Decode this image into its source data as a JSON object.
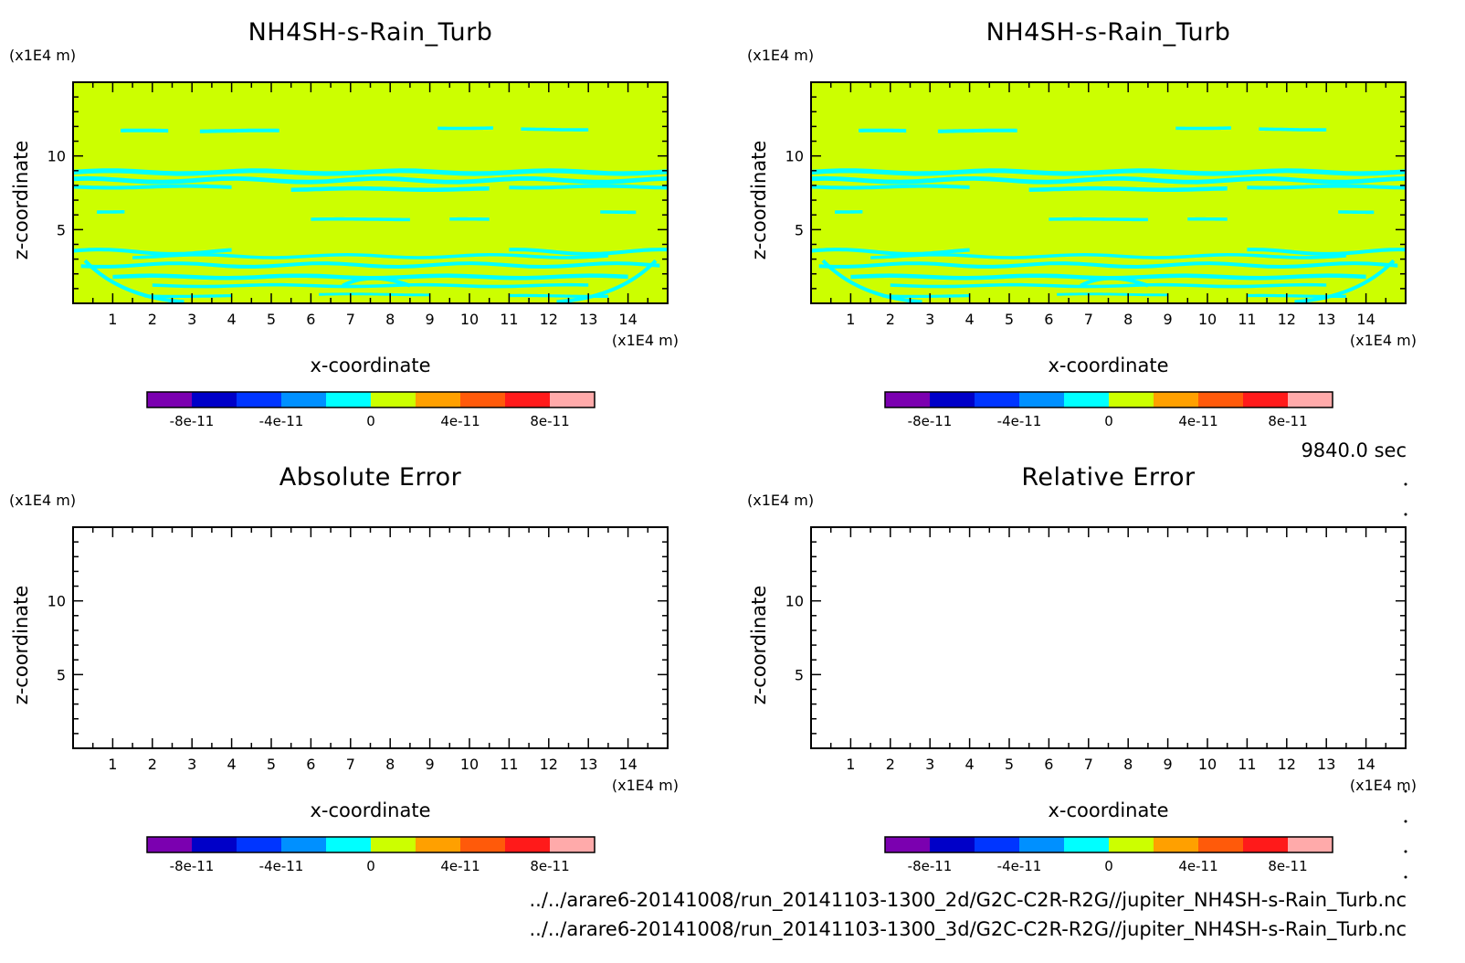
{
  "chart_data": [
    {
      "type": "heatmap",
      "title": "NH4SH-s-Rain_Turb",
      "xlabel": "x-coordinate",
      "ylabel": "z-coordinate",
      "x_unit": "(x1E4 m)",
      "y_unit": "(x1E4 m)",
      "xlim": [
        0,
        15
      ],
      "ylim": [
        0,
        15
      ],
      "x_ticks": [
        1,
        2,
        3,
        4,
        5,
        6,
        7,
        8,
        9,
        10,
        11,
        12,
        13,
        14
      ],
      "y_ticks": [
        5,
        10
      ],
      "fill": "near-zero field (0 to 2e-11) with thin bands in the -2e-11 to 0 level",
      "colorbar": {
        "levels": [
          -1e-10,
          -8e-11,
          -6e-11,
          -4e-11,
          -2e-11,
          0,
          2e-11,
          4e-11,
          6e-11,
          8e-11,
          1e-10
        ],
        "labels": [
          "-8e-11",
          "-4e-11",
          "0",
          "4e-11",
          "8e-11"
        ]
      }
    },
    {
      "type": "heatmap",
      "title": "NH4SH-s-Rain_Turb",
      "xlabel": "x-coordinate",
      "ylabel": "z-coordinate",
      "x_unit": "(x1E4 m)",
      "y_unit": "(x1E4 m)",
      "xlim": [
        0,
        15
      ],
      "ylim": [
        0,
        15
      ],
      "x_ticks": [
        1,
        2,
        3,
        4,
        5,
        6,
        7,
        8,
        9,
        10,
        11,
        12,
        13,
        14
      ],
      "y_ticks": [
        5,
        10
      ],
      "fill": "near-zero field (0 to 2e-11) with thin bands in the -2e-11 to 0 level",
      "colorbar": {
        "levels": [
          -1e-10,
          -8e-11,
          -6e-11,
          -4e-11,
          -2e-11,
          0,
          2e-11,
          4e-11,
          6e-11,
          8e-11,
          1e-10
        ],
        "labels": [
          "-8e-11",
          "-4e-11",
          "0",
          "4e-11",
          "8e-11"
        ]
      }
    },
    {
      "type": "heatmap",
      "title": "Absolute Error",
      "xlabel": "x-coordinate",
      "ylabel": "z-coordinate",
      "x_unit": "(x1E4 m)",
      "y_unit": "(x1E4 m)",
      "xlim": [
        0,
        15
      ],
      "ylim": [
        0,
        15
      ],
      "x_ticks": [
        1,
        2,
        3,
        4,
        5,
        6,
        7,
        8,
        9,
        10,
        11,
        12,
        13,
        14
      ],
      "y_ticks": [
        5,
        10
      ],
      "fill": "empty",
      "colorbar": {
        "levels": [
          -1e-10,
          -8e-11,
          -6e-11,
          -4e-11,
          -2e-11,
          0,
          2e-11,
          4e-11,
          6e-11,
          8e-11,
          1e-10
        ],
        "labels": [
          "-8e-11",
          "-4e-11",
          "0",
          "4e-11",
          "8e-11"
        ]
      }
    },
    {
      "type": "heatmap",
      "title": "Relative Error",
      "xlabel": "x-coordinate",
      "ylabel": "z-coordinate",
      "x_unit": "(x1E4 m)",
      "y_unit": "(x1E4 m)",
      "xlim": [
        0,
        15
      ],
      "ylim": [
        0,
        15
      ],
      "x_ticks": [
        1,
        2,
        3,
        4,
        5,
        6,
        7,
        8,
        9,
        10,
        11,
        12,
        13,
        14
      ],
      "y_ticks": [
        5,
        10
      ],
      "fill": "empty",
      "colorbar": {
        "levels": [
          -1e-10,
          -8e-11,
          -6e-11,
          -4e-11,
          -2e-11,
          0,
          2e-11,
          4e-11,
          6e-11,
          8e-11,
          1e-10
        ],
        "labels": [
          "-8e-11",
          "-4e-11",
          "0",
          "4e-11",
          "8e-11"
        ]
      }
    }
  ],
  "colors": {
    "colorbar_bins": [
      "#7b00b0",
      "#0000c8",
      "#0035ff",
      "#0090ff",
      "#00ffff",
      "#ccff00",
      "#ffa000",
      "#ff5a0a",
      "#ff1a1a",
      "#ffaaaa"
    ],
    "field_background": "#ccff00",
    "field_bands": "#00ffff",
    "frame": "#000000"
  },
  "time_label": "9840.0 sec",
  "footer": {
    "line1": "../../arare6-20141008/run_20141103-1300_2d/G2C-C2R-R2G//jupiter_NH4SH-s-Rain_Turb.nc",
    "line2": "../../arare6-20141008/run_20141103-1300_3d/G2C-C2R-R2G//jupiter_NH4SH-s-Rain_Turb.nc"
  }
}
